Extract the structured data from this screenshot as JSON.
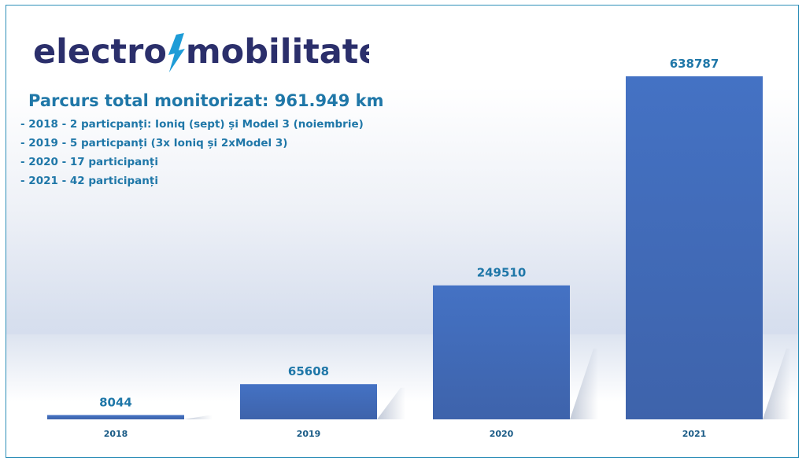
{
  "logo": {
    "text_left": "electro",
    "text_right": "mobilitate",
    "icon": "lightning-bolt-icon",
    "text_color": "#2b2f6b",
    "bolt_color": "#1e9cd7"
  },
  "info": {
    "title": "Parcurs total monitorizat: 961.949 km",
    "lines": [
      "- 2018 - 2 particpanți: Ioniq (sept) și Model 3 (noiembrie)",
      "- 2019 - 5 particpanți (3x Ioniq și 2xModel 3)",
      "- 2020 - 17 participanți",
      "- 2021 - 42 participanți"
    ]
  },
  "colors": {
    "bar_top": "#4472c4",
    "bar_bottom": "#3e63ab",
    "label": "#1f77a8",
    "frame": "#2e8fb8"
  },
  "chart_data": {
    "type": "bar",
    "title": "",
    "xlabel": "",
    "ylabel": "",
    "categories": [
      "2018",
      "2019",
      "2020",
      "2021"
    ],
    "values": [
      8044,
      65608,
      249510,
      638787
    ],
    "data_labels": [
      "8044",
      "65608",
      "249510",
      "638787"
    ],
    "ylim": [
      0,
      638787
    ],
    "grid": false,
    "legend": "none"
  }
}
